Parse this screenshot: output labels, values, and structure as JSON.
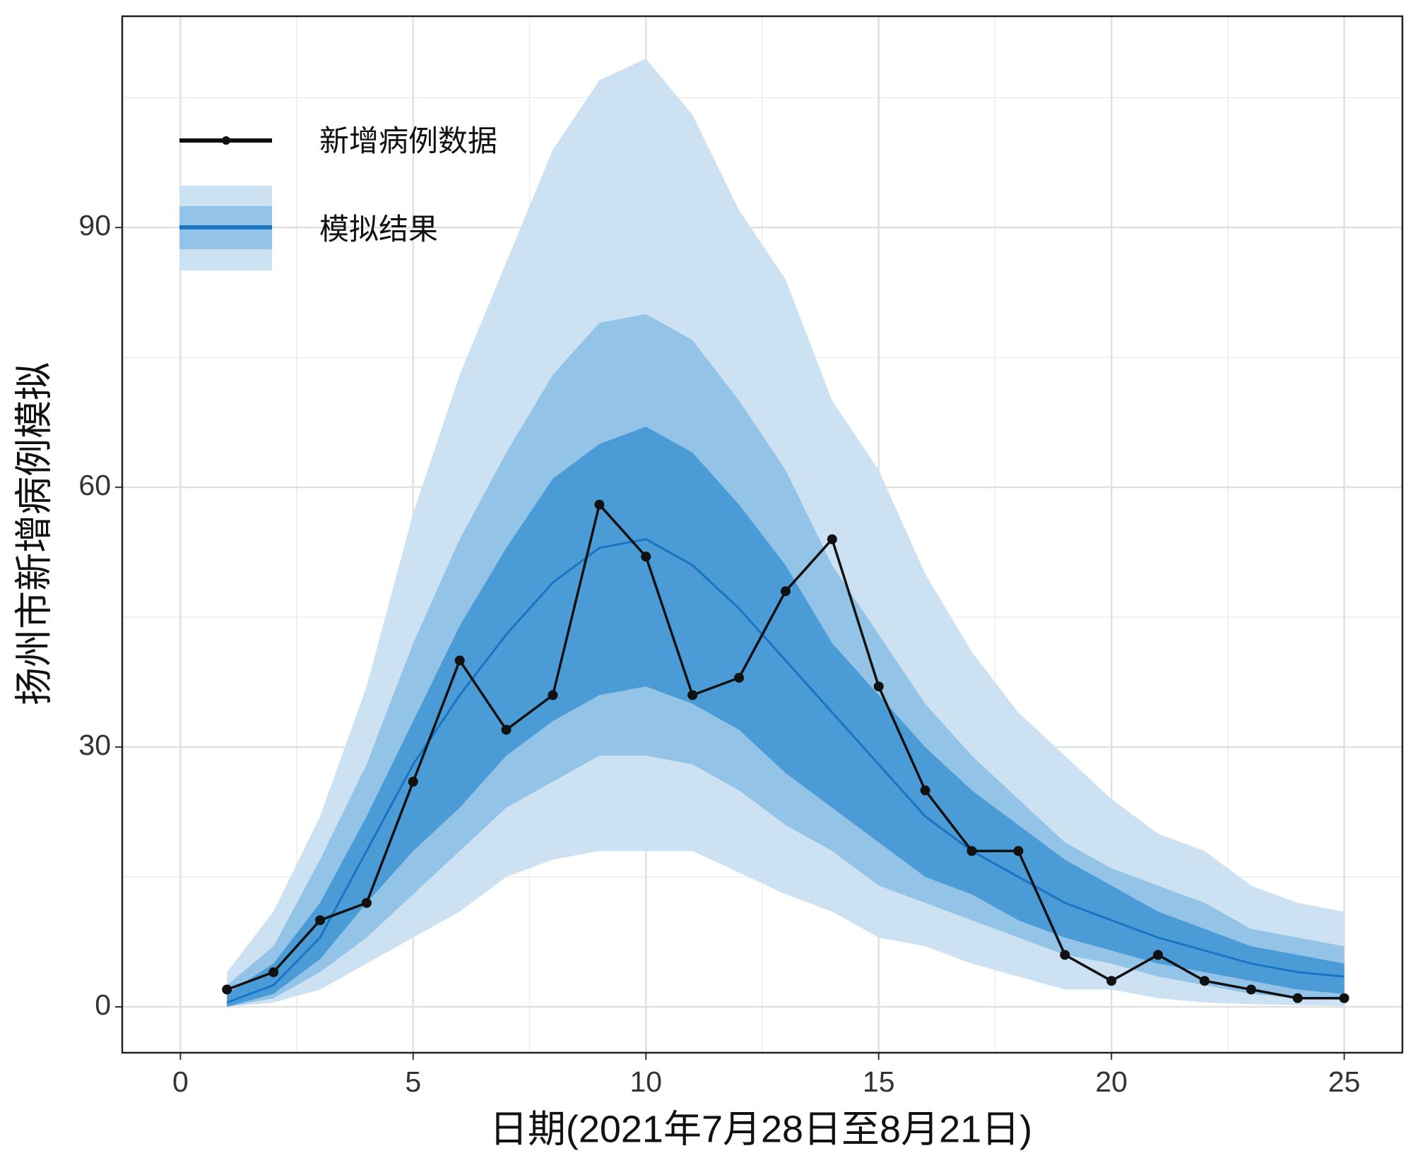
{
  "chart_data": {
    "type": "line",
    "x_label": "日期(2021年7月28日至8月21日)",
    "y_label": "扬州市新增病例模拟",
    "x": [
      1,
      2,
      3,
      4,
      5,
      6,
      7,
      8,
      9,
      10,
      11,
      12,
      13,
      14,
      15,
      16,
      17,
      18,
      19,
      20,
      21,
      22,
      23,
      24,
      25
    ],
    "bands": [
      {
        "color": "#cce2f3",
        "lower": [
          0,
          0.5,
          2,
          5,
          8,
          11,
          15,
          17,
          18,
          18,
          18,
          15.5,
          13,
          11,
          8,
          7,
          5,
          3.5,
          2,
          2,
          1,
          0.5,
          0.3,
          0.2,
          0.1
        ],
        "upper": [
          4,
          11,
          22,
          37,
          57,
          73,
          86,
          99,
          107,
          109.5,
          103,
          92,
          84,
          70,
          62,
          50,
          41,
          34,
          29,
          24,
          20,
          18,
          14,
          12,
          11
        ]
      },
      {
        "color": "#93c3e6",
        "lower": [
          0,
          1,
          4,
          8,
          13,
          18,
          23,
          26,
          29,
          29,
          28,
          25,
          21,
          18,
          14,
          12,
          10,
          8,
          6,
          5,
          3.5,
          2.5,
          1.5,
          1,
          0.8
        ],
        "upper": [
          2.5,
          7,
          17,
          28,
          42,
          54,
          64,
          73,
          79,
          80,
          77,
          70,
          62,
          51,
          43,
          35,
          29,
          24,
          19,
          16,
          14,
          12,
          9,
          8,
          7
        ]
      },
      {
        "color": "#4b9bd6",
        "lower": [
          0,
          1.5,
          5.5,
          12,
          18,
          23,
          29,
          33,
          36,
          37,
          35,
          32,
          27,
          23,
          19,
          15,
          13,
          10,
          8,
          6.5,
          5,
          4,
          3,
          2,
          1.5
        ],
        "upper": [
          1.5,
          5,
          12,
          22,
          33,
          44,
          53,
          61,
          65,
          67,
          64,
          58,
          51,
          42,
          36,
          30,
          25,
          21,
          17,
          14,
          11,
          9,
          7,
          6,
          5
        ]
      }
    ],
    "series": [
      {
        "name": "新增病例数据",
        "color": "#111111",
        "markers": true,
        "values": [
          2,
          4,
          10,
          12,
          26,
          40,
          32,
          36,
          58,
          52,
          36,
          38,
          48,
          54,
          37,
          25,
          18,
          18,
          6,
          3,
          6,
          3,
          2,
          1,
          1
        ]
      },
      {
        "name": "模拟结果",
        "color": "#1a74c4",
        "markers": false,
        "values": [
          0.5,
          2.5,
          8,
          18,
          28,
          36,
          43,
          49,
          53,
          54,
          51,
          46,
          40,
          34,
          28,
          22,
          18,
          15,
          12,
          10,
          8,
          6.5,
          5,
          4,
          3.5
        ]
      }
    ],
    "xlim": [
      -1.25,
      26.25
    ],
    "ylim": [
      -5.3,
      114.4
    ],
    "xticks": [
      0,
      5,
      10,
      15,
      20,
      25
    ],
    "yticks": [
      0,
      30,
      60,
      90
    ],
    "minor_xticks": [
      2.5,
      7.5,
      12.5,
      17.5,
      22.5
    ],
    "minor_yticks": [
      15,
      45,
      75,
      105
    ],
    "grid": true
  }
}
